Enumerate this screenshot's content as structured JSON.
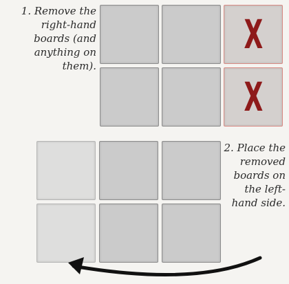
{
  "instructions": {
    "step1": "1. Remove the right-hand boards (and anything on them).",
    "step2": "2. Place the removed boards on the left-hand side."
  },
  "top_grid": {
    "removed_marker": "X",
    "marker_color": "#8e1a1a",
    "removed_border_color": "#d98a84"
  },
  "colors": {
    "board": "#cbcbcb",
    "board_placed": "#dededd",
    "background": "#f5f4f1",
    "arrow": "#111111"
  }
}
